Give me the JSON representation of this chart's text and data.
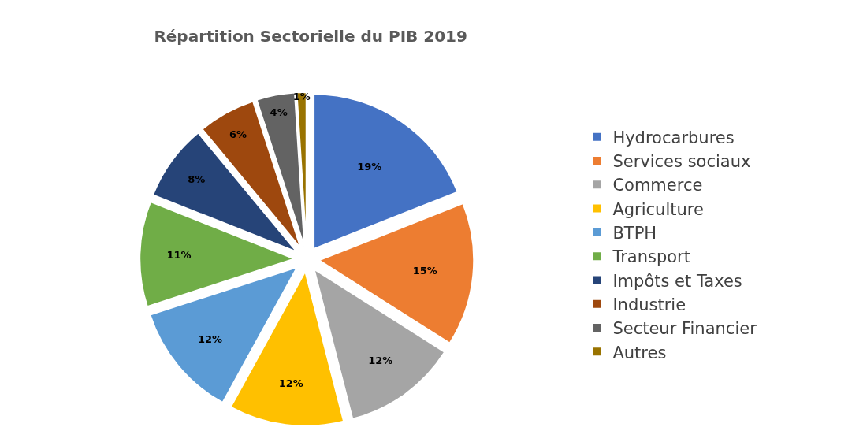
{
  "chart_data": {
    "type": "pie",
    "title": "Répartition Sectorielle du PIB 2019",
    "categories": [
      "Hydrocarbures",
      "Services sociaux",
      "Commerce",
      "Agriculture",
      "BTPH",
      "Transport",
      "Impôts et Taxes",
      "Industrie",
      "Secteur Financier",
      "Autres"
    ],
    "values": [
      19,
      15,
      12,
      12,
      12,
      11,
      8,
      6,
      4,
      1
    ],
    "value_labels": [
      "19%",
      "15%",
      "12%",
      "12%",
      "12%",
      "11%",
      "8%",
      "6%",
      "4%",
      "1%"
    ],
    "colors": [
      "#4472c4",
      "#ed7d31",
      "#a5a5a5",
      "#ffc000",
      "#5b9bd5",
      "#70ad47",
      "#264478",
      "#9e480e",
      "#636363",
      "#997300"
    ],
    "legend": "right"
  }
}
